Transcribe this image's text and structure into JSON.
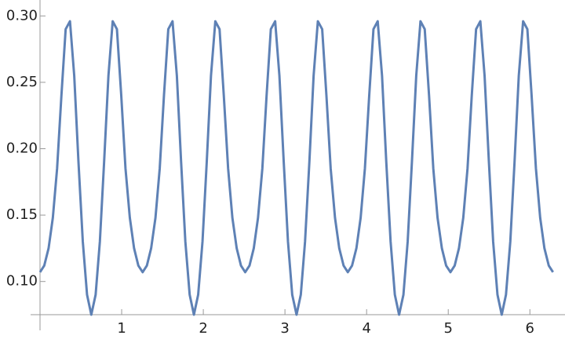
{
  "chart_data": {
    "type": "line",
    "x": [
      0,
      0.052,
      0.105,
      0.157,
      0.209,
      0.262,
      0.314,
      0.367,
      0.419,
      0.471,
      0.524,
      0.576,
      0.628,
      0.681,
      0.733,
      0.785,
      0.838,
      0.89,
      0.942,
      0.995,
      1.047,
      1.1,
      1.152,
      1.204,
      1.257,
      1.309,
      1.361,
      1.414,
      1.466,
      1.518,
      1.571,
      1.623,
      1.676,
      1.728,
      1.78,
      1.833,
      1.885,
      1.937,
      1.99,
      2.042,
      2.094,
      2.147,
      2.199,
      2.251,
      2.304,
      2.356,
      2.409,
      2.461,
      2.513,
      2.566,
      2.618,
      2.67,
      2.723,
      2.775,
      2.827,
      2.88,
      2.932,
      2.985,
      3.037,
      3.089,
      3.142,
      3.194,
      3.246,
      3.299,
      3.351,
      3.403,
      3.456,
      3.508,
      3.56,
      3.613,
      3.665,
      3.718,
      3.77,
      3.822,
      3.875,
      3.927,
      3.979,
      4.032,
      4.084,
      4.136,
      4.189,
      4.241,
      4.294,
      4.346,
      4.398,
      4.451,
      4.503,
      4.555,
      4.608,
      4.66,
      4.712,
      4.765,
      4.817,
      4.869,
      4.922,
      4.974,
      5.027,
      5.079,
      5.131,
      5.184,
      5.236,
      5.288,
      5.341,
      5.393,
      5.445,
      5.498,
      5.55,
      5.603,
      5.655,
      5.707,
      5.76,
      5.812,
      5.864,
      5.917,
      5.969,
      6.021,
      6.074,
      6.126,
      6.178,
      6.231,
      6.283
    ],
    "series": [
      {
        "color": "#5e81b5",
        "values": [
          0.107,
          0.112,
          0.125,
          0.148,
          0.185,
          0.24,
          0.29,
          0.296,
          0.255,
          0.19,
          0.13,
          0.09,
          0.075,
          0.09,
          0.13,
          0.19,
          0.255,
          0.296,
          0.29,
          0.24,
          0.185,
          0.148,
          0.125,
          0.112,
          0.107,
          0.112,
          0.125,
          0.148,
          0.185,
          0.24,
          0.29,
          0.296,
          0.255,
          0.19,
          0.13,
          0.09,
          0.075,
          0.09,
          0.13,
          0.19,
          0.255,
          0.296,
          0.29,
          0.24,
          0.185,
          0.148,
          0.125,
          0.112,
          0.107,
          0.112,
          0.125,
          0.148,
          0.185,
          0.24,
          0.29,
          0.296,
          0.255,
          0.19,
          0.13,
          0.09,
          0.075,
          0.09,
          0.13,
          0.19,
          0.255,
          0.296,
          0.29,
          0.24,
          0.185,
          0.148,
          0.125,
          0.112,
          0.107,
          0.112,
          0.125,
          0.148,
          0.185,
          0.24,
          0.29,
          0.296,
          0.255,
          0.19,
          0.13,
          0.09,
          0.075,
          0.09,
          0.13,
          0.19,
          0.255,
          0.296,
          0.29,
          0.24,
          0.185,
          0.148,
          0.125,
          0.112,
          0.107,
          0.112,
          0.125,
          0.148,
          0.185,
          0.24,
          0.29,
          0.296,
          0.255,
          0.19,
          0.13,
          0.09,
          0.075,
          0.09,
          0.13,
          0.19,
          0.255,
          0.296,
          0.29,
          0.24,
          0.185,
          0.148,
          0.125,
          0.112,
          0.107
        ]
      }
    ],
    "xlim": [
      0,
      6.43
    ],
    "ylim": [
      0.075,
      0.312
    ],
    "xticks": [
      1,
      2,
      3,
      4,
      5,
      6
    ],
    "yticks": [
      {
        "value": 0.1,
        "label": "0.10"
      },
      {
        "value": 0.15,
        "label": "0.15"
      },
      {
        "value": 0.2,
        "label": "0.20"
      },
      {
        "value": 0.25,
        "label": "0.25"
      },
      {
        "value": 0.3,
        "label": "0.30"
      }
    ]
  }
}
